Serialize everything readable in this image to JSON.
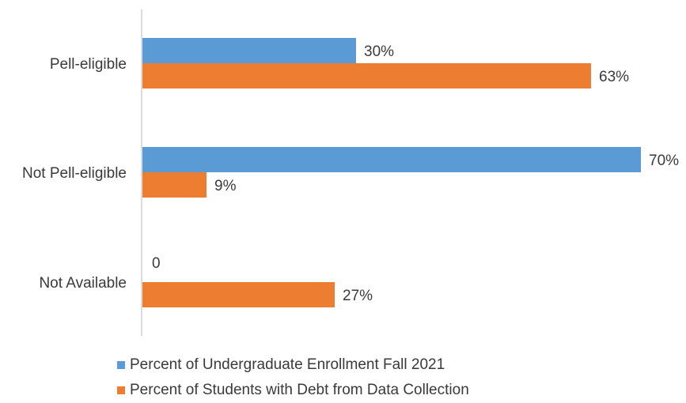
{
  "chart_data": {
    "type": "bar",
    "orientation": "horizontal",
    "categories": [
      "Pell-eligible",
      "Not Pell-eligible",
      "Not Available"
    ],
    "series": [
      {
        "name": "Percent of Undergraduate Enrollment Fall 2021",
        "color": "#5b9bd5",
        "values": [
          30,
          70,
          0
        ],
        "labels": [
          "30%",
          "70%",
          "0"
        ]
      },
      {
        "name": "Percent of Students with Debt from Data Collection",
        "color": "#ed7d31",
        "values": [
          63,
          9,
          27
        ],
        "labels": [
          "63%",
          "9%",
          "27%"
        ]
      }
    ],
    "xlim": [
      0,
      70
    ],
    "grid": false,
    "legend_position": "bottom"
  }
}
